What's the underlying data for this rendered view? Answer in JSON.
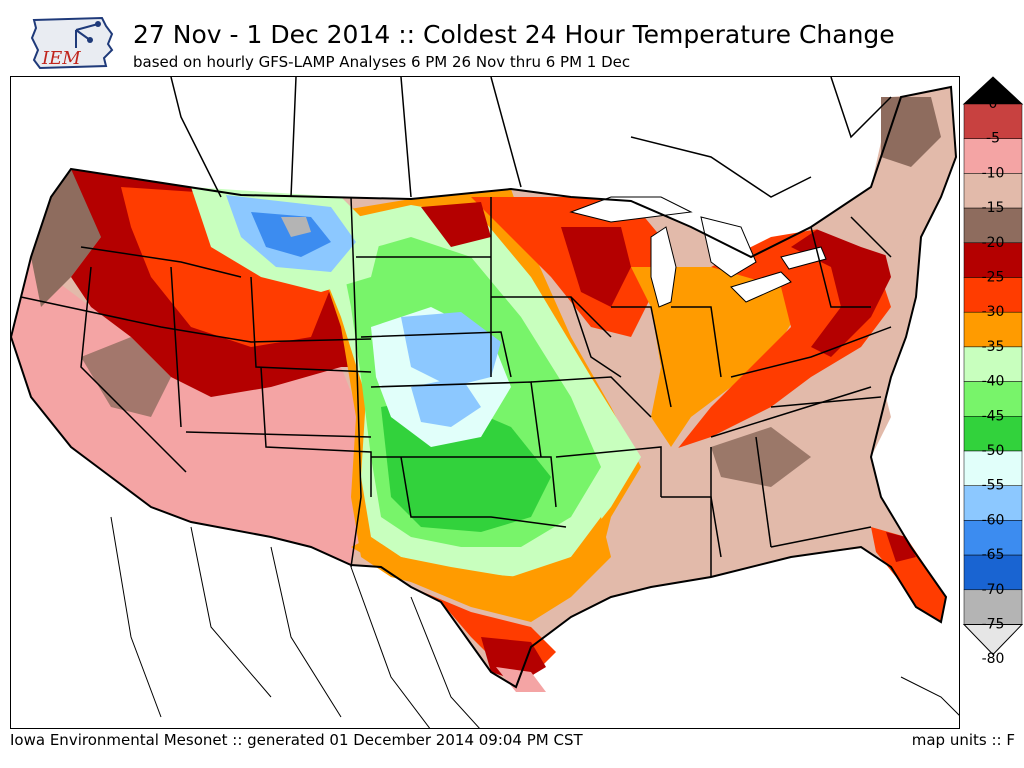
{
  "header": {
    "title": "27 Nov - 1 Dec 2014 :: Coldest 24 Hour Temperature Change",
    "subtitle": "based on hourly GFS-LAMP Analyses 6 PM 26 Nov thru 6 PM 1 Dec"
  },
  "logo": {
    "text": "IEM",
    "icon": "iowa-state-logo-icon"
  },
  "legend": {
    "units": "F",
    "bins": [
      {
        "label": "0",
        "color": "#000000"
      },
      {
        "label": "-5",
        "color": "#c84140"
      },
      {
        "label": "-10",
        "color": "#f4a4a4"
      },
      {
        "label": "-15",
        "color": "#e2baaa"
      },
      {
        "label": "-20",
        "color": "#8e6c5e"
      },
      {
        "label": "-25",
        "color": "#b40000"
      },
      {
        "label": "-30",
        "color": "#ff3c00"
      },
      {
        "label": "-35",
        "color": "#ff9b00"
      },
      {
        "label": "-40",
        "color": "#c8ffbe"
      },
      {
        "label": "-45",
        "color": "#78f46a"
      },
      {
        "label": "-50",
        "color": "#32d23c"
      },
      {
        "label": "-55",
        "color": "#e1fffa"
      },
      {
        "label": "-60",
        "color": "#8cc8ff"
      },
      {
        "label": "-65",
        "color": "#3c8cf0"
      },
      {
        "label": "-70",
        "color": "#1964d2"
      },
      {
        "label": "-75",
        "color": "#b4b4b4"
      },
      {
        "label": "-80",
        "color": "#e6e6e6"
      }
    ]
  },
  "footer": {
    "credit": "Iowa Environmental Mesonet :: generated 01 December 2014 09:04 PM CST",
    "units_label": "map units :: F"
  }
}
